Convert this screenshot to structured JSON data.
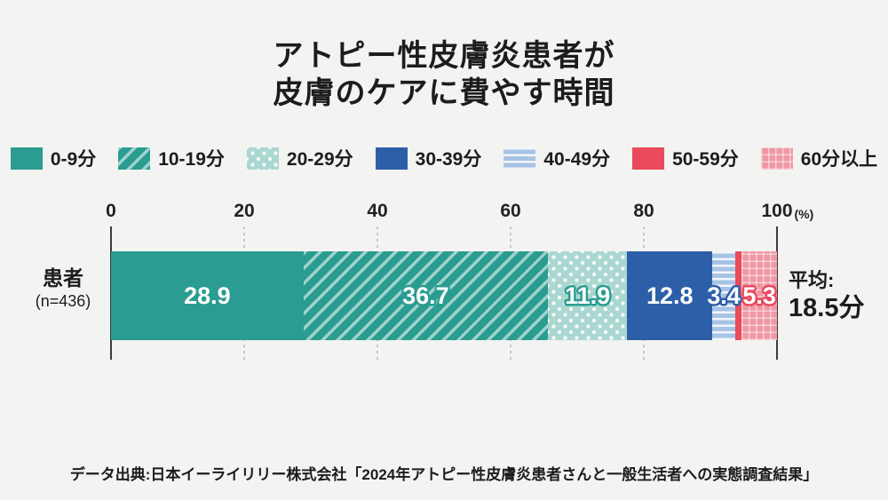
{
  "title": {
    "line1": "アトピー性皮膚炎患者が",
    "line2": "皮膚のケアに費やす時間"
  },
  "legend": [
    {
      "label": "0-9分",
      "pattern": "solid",
      "color": "#2a9c91"
    },
    {
      "label": "10-19分",
      "pattern": "diag",
      "color": "#2a9c91"
    },
    {
      "label": "20-29分",
      "pattern": "dots",
      "color": "#abd7d1"
    },
    {
      "label": "30-39分",
      "pattern": "solid",
      "color": "#2d5fa9"
    },
    {
      "label": "40-49分",
      "pattern": "hstripes",
      "color": "#a7c3e5"
    },
    {
      "label": "50-59分",
      "pattern": "solid",
      "color": "#e94a5c"
    },
    {
      "label": "60分以上",
      "pattern": "grid",
      "color": "#ef98a5"
    }
  ],
  "axis": {
    "ticks": [
      "0",
      "20",
      "40",
      "60",
      "80",
      "100"
    ],
    "unit": "(%)"
  },
  "row": {
    "label": "患者",
    "n": "(n=436)"
  },
  "bar": {
    "segments": [
      {
        "value": 28.9,
        "label": "28.9",
        "pattern": "solid",
        "color": "#2a9c91",
        "label_stroke": ""
      },
      {
        "value": 36.7,
        "label": "36.7",
        "pattern": "diag",
        "color": "#2a9c91",
        "label_stroke": "#2a9c91"
      },
      {
        "value": 11.9,
        "label": "11.9",
        "pattern": "dots",
        "color": "#abd7d1",
        "label_stroke": "#2a9c91"
      },
      {
        "value": 12.8,
        "label": "12.8",
        "pattern": "solid",
        "color": "#2d5fa9",
        "label_stroke": ""
      },
      {
        "value": 3.4,
        "label": "3.4",
        "pattern": "hstripes",
        "color": "#a7c3e5",
        "label_stroke": "#2d5fa9"
      },
      {
        "value": 1.0,
        "label": "",
        "pattern": "solid",
        "color": "#e94a5c",
        "label_stroke": ""
      },
      {
        "value": 5.3,
        "label": "5.3",
        "pattern": "grid",
        "color": "#ef98a5",
        "label_stroke": "#e94a5c"
      }
    ]
  },
  "average": {
    "label": "平均:",
    "value": "18.5分"
  },
  "footer": {
    "source": "データ出典:日本イーライリリー株式会社「2024年アトピー性皮膚炎患者さんと一般生活者への実態調査結果」"
  },
  "chart_data": {
    "type": "bar",
    "orientation": "horizontal-stacked",
    "title": "アトピー性皮膚炎患者が皮膚のケアに費やす時間",
    "categories": [
      "患者 (n=436)"
    ],
    "series": [
      {
        "name": "0-9分",
        "values": [
          28.9
        ]
      },
      {
        "name": "10-19分",
        "values": [
          36.7
        ]
      },
      {
        "name": "20-29分",
        "values": [
          11.9
        ]
      },
      {
        "name": "30-39分",
        "values": [
          12.8
        ]
      },
      {
        "name": "40-49分",
        "values": [
          3.4
        ]
      },
      {
        "name": "50-59分",
        "values": [
          1.0
        ],
        "note": "unlabeled thin segment, inferred so total = 100"
      },
      {
        "name": "60分以上",
        "values": [
          5.3
        ]
      }
    ],
    "xlim": [
      0,
      100
    ],
    "xticks": [
      0,
      20,
      40,
      60,
      80,
      100
    ],
    "x_unit": "(%)",
    "grid": "dotted vertical at 20/40/60/80, solid at 0/100",
    "legend_position": "top",
    "annotations": [
      "平均:18.5分"
    ],
    "source": "データ出典:日本イーライリリー株式会社「2024年アトピー性皮膚炎患者さんと一般生活者への実態調査結果」"
  }
}
